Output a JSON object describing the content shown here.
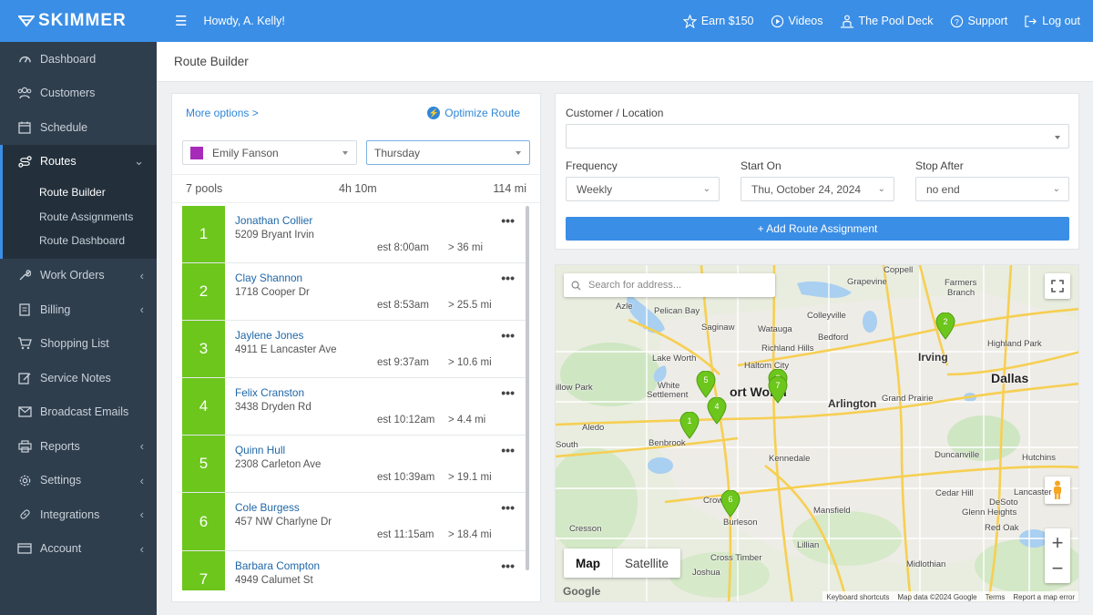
{
  "brand": {
    "name": "SKIMMER"
  },
  "colors": {
    "primary": "#3a8ee6",
    "sidebar": "#2f3e4d",
    "stop_green": "#6cc61c",
    "tech_swatch": "#a72bb9"
  },
  "sidebar": {
    "items": [
      {
        "label": "Dashboard",
        "icon": "dashboard-icon"
      },
      {
        "label": "Customers",
        "icon": "customers-icon"
      },
      {
        "label": "Schedule",
        "icon": "calendar-icon"
      },
      {
        "label": "Routes",
        "icon": "route-icon"
      },
      {
        "label": "Work Orders",
        "icon": "wrench-icon"
      },
      {
        "label": "Billing",
        "icon": "receipt-icon"
      },
      {
        "label": "Shopping List",
        "icon": "cart-icon"
      },
      {
        "label": "Service Notes",
        "icon": "note-icon"
      },
      {
        "label": "Broadcast Emails",
        "icon": "mail-icon"
      },
      {
        "label": "Reports",
        "icon": "printer-icon"
      },
      {
        "label": "Settings",
        "icon": "gear-icon"
      },
      {
        "label": "Integrations",
        "icon": "link-icon"
      },
      {
        "label": "Account",
        "icon": "card-icon"
      }
    ],
    "routes_sub": [
      "Route Builder",
      "Route Assignments",
      "Route Dashboard"
    ]
  },
  "topbar": {
    "greeting": "Howdy, A. Kelly!",
    "links": [
      "Earn $150",
      "Videos",
      "The Pool Deck",
      "Support",
      "Log out"
    ]
  },
  "page": {
    "title": "Route Builder"
  },
  "route_panel": {
    "more_options": "More options >",
    "optimize": "Optimize Route",
    "technician": "Emily Fanson",
    "day": "Thursday",
    "summary": {
      "pools": "7 pools",
      "time": "4h 10m",
      "distance": "114 mi"
    },
    "stops": [
      {
        "num": "1",
        "name": "Jonathan Collier",
        "address": "5209 Bryant Irvin",
        "est": "est 8:00am",
        "dist": "> 36 mi"
      },
      {
        "num": "2",
        "name": "Clay Shannon",
        "address": "1718 Cooper Dr",
        "est": "est 8:53am",
        "dist": "> 25.5 mi"
      },
      {
        "num": "3",
        "name": "Jaylene Jones",
        "address": "4911 E Lancaster Ave",
        "est": "est 9:37am",
        "dist": "> 10.6 mi"
      },
      {
        "num": "4",
        "name": "Felix Cranston",
        "address": "3438 Dryden Rd",
        "est": "est 10:12am",
        "dist": "> 4.4 mi"
      },
      {
        "num": "5",
        "name": "Quinn Hull",
        "address": "2308 Carleton Ave",
        "est": "est 10:39am",
        "dist": "> 19.1 mi"
      },
      {
        "num": "6",
        "name": "Cole Burgess",
        "address": "457 NW Charlyne Dr",
        "est": "est 11:15am",
        "dist": "> 18.4 mi"
      },
      {
        "num": "7",
        "name": "Barbara Compton",
        "address": "4949 Calumet St",
        "est": "",
        "dist": ""
      }
    ]
  },
  "form": {
    "customer_label": "Customer / Location",
    "customer_value": "",
    "frequency_label": "Frequency",
    "frequency_value": "Weekly",
    "start_label": "Start On",
    "start_value": "Thu, October 24, 2024",
    "stop_label": "Stop After",
    "stop_value": "no end",
    "add_button": "+ Add Route Assignment"
  },
  "map": {
    "search_placeholder": "Search for address...",
    "type_map": "Map",
    "type_satellite": "Satellite",
    "google": "Google",
    "attribution": [
      "Keyboard shortcuts",
      "Map data ©2024 Google",
      "Terms",
      "Report a map error"
    ],
    "places": {
      "coppell": "Coppell",
      "farmers": "Farmers",
      "branch": "Branch",
      "grapevine": "Grapevine",
      "azle": "Azle",
      "pelican": "Pelican Bay",
      "colleyville": "Colleyville",
      "saginaw": "Saginaw",
      "watauga": "Watauga",
      "bedford": "Bedford",
      "richland": "Richland Hills",
      "irving": "Irving",
      "highland": "Highland Park",
      "lakeworth": "Lake Worth",
      "haltom": "Haltom City",
      "dallas": "Dallas",
      "willow": "illow Park",
      "white": "White",
      "settlement": "Settlement",
      "fortworth": "ort Worth",
      "arlington": "Arlington",
      "grandprairie": "Grand Prairie",
      "aledo": "Aledo",
      "benbrook": "Benbrook",
      "south": "South",
      "kennedale": "Kennedale",
      "duncanville": "Duncanville",
      "hutchins": "Hutchins",
      "cedarhill": "Cedar Hill",
      "lancaster": "Lancaster",
      "desoto": "DeSoto",
      "crowley": "Crow",
      "burleson": "Burleson",
      "mansfield": "Mansfield",
      "glenn": "Glenn Heights",
      "redoak": "Red Oak",
      "cresson": "Cresson",
      "crosstimber": "Cross Timber",
      "lillian": "Lillian",
      "joshua": "Joshua",
      "midlothian": "Midlothian"
    },
    "pins": [
      "2",
      "5",
      "3",
      "7",
      "4",
      "1",
      "6"
    ]
  }
}
